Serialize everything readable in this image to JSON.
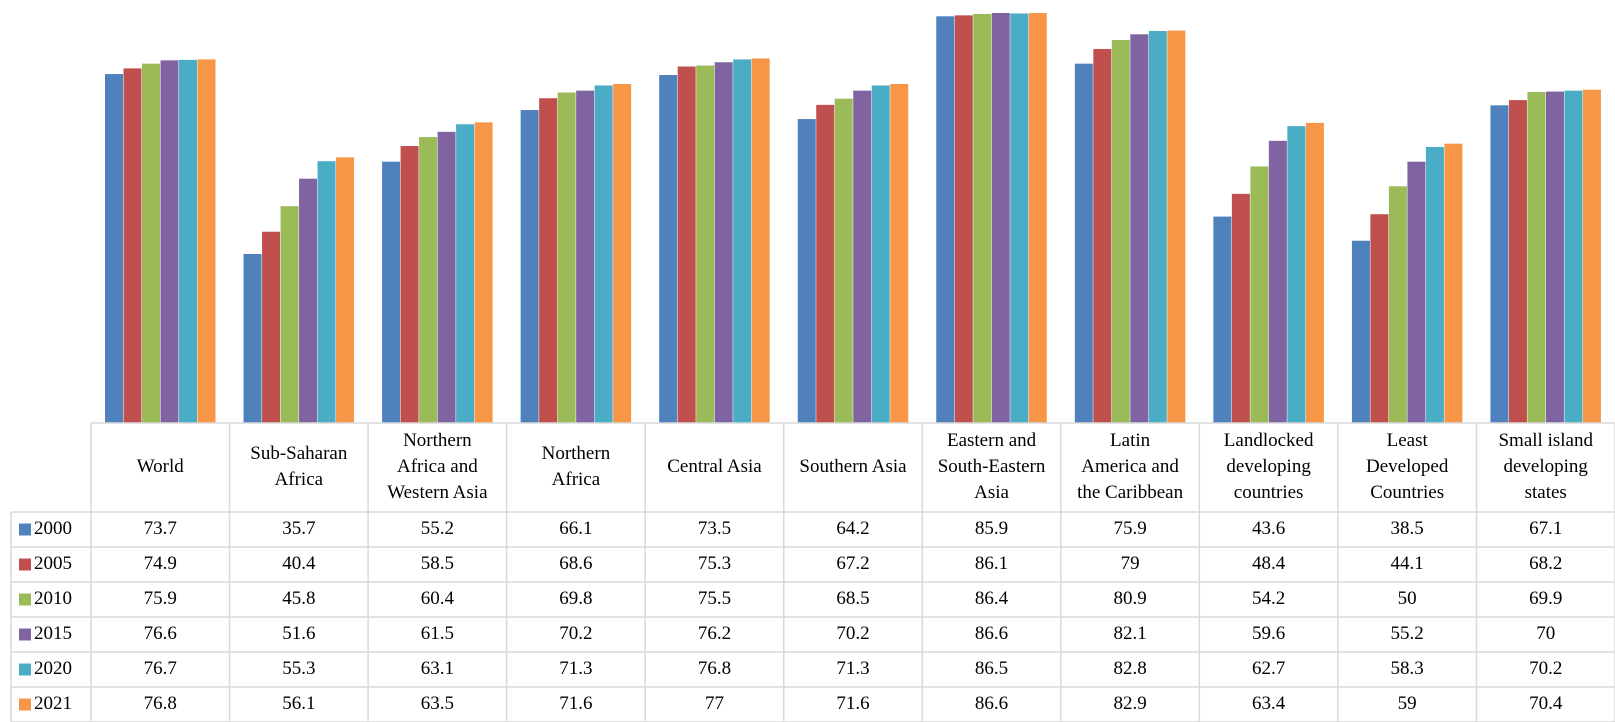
{
  "chart_data": {
    "type": "bar",
    "categories": [
      [
        "World"
      ],
      [
        "Sub-Saharan",
        "Africa"
      ],
      [
        "Northern",
        "Africa and",
        "Western Asia"
      ],
      [
        "Northern",
        "Africa"
      ],
      [
        "Central Asia"
      ],
      [
        "Southern Asia"
      ],
      [
        "Eastern and",
        "South-Eastern",
        "Asia"
      ],
      [
        "Latin",
        "America and",
        "the Caribbean"
      ],
      [
        "Landlocked",
        "developing",
        "countries"
      ],
      [
        "Least",
        "Developed",
        "Countries"
      ],
      [
        "Small island",
        "developing",
        "states"
      ]
    ],
    "series": [
      {
        "name": "2000",
        "color": "#4F81BD",
        "values": [
          73.7,
          35.7,
          55.2,
          66.1,
          73.5,
          64.2,
          85.9,
          75.9,
          43.6,
          38.5,
          67.1
        ]
      },
      {
        "name": "2005",
        "color": "#C0504D",
        "values": [
          74.9,
          40.4,
          58.5,
          68.6,
          75.3,
          67.2,
          86.1,
          79,
          48.4,
          44.1,
          68.2
        ]
      },
      {
        "name": "2010",
        "color": "#9BBB59",
        "values": [
          75.9,
          45.8,
          60.4,
          69.8,
          75.5,
          68.5,
          86.4,
          80.9,
          54.2,
          50,
          69.9
        ]
      },
      {
        "name": "2015",
        "color": "#8064A2",
        "values": [
          76.6,
          51.6,
          61.5,
          70.2,
          76.2,
          70.2,
          86.6,
          82.1,
          59.6,
          55.2,
          70
        ]
      },
      {
        "name": "2020",
        "color": "#4BACC6",
        "values": [
          76.7,
          55.3,
          63.1,
          71.3,
          76.8,
          71.3,
          86.5,
          82.8,
          62.7,
          58.3,
          70.2
        ]
      },
      {
        "name": "2021",
        "color": "#F79646",
        "values": [
          76.8,
          56.1,
          63.5,
          71.6,
          77,
          71.6,
          86.6,
          82.9,
          63.4,
          59,
          70.4
        ]
      }
    ],
    "ylim": [
      0,
      86.6
    ],
    "grid": false,
    "legend": "data-table",
    "title": "",
    "xlabel": "",
    "ylabel": ""
  }
}
